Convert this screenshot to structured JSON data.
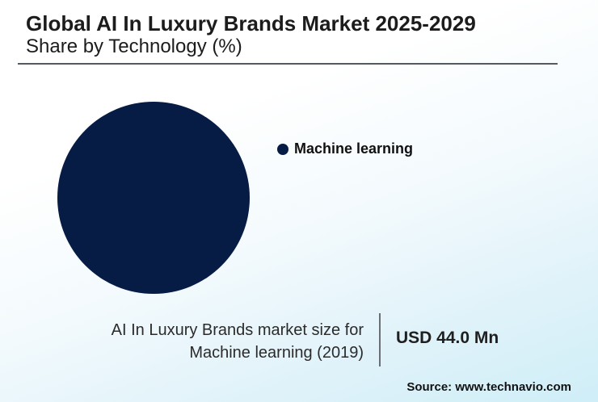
{
  "header": {
    "title": "Global AI In Luxury Brands Market 2025-2029",
    "subtitle": "Share by Technology (%)"
  },
  "chart_data": {
    "type": "pie",
    "categories": [
      "Machine learning"
    ],
    "values": [
      100
    ],
    "colors": [
      "#071c45"
    ],
    "legend_position": "right"
  },
  "legend": {
    "items": [
      {
        "label": "Machine learning",
        "color": "#071c45"
      }
    ]
  },
  "footer": {
    "caption_line1": "AI In Luxury Brands market size for",
    "caption_line2": "Machine learning (2019)",
    "market_value": "USD 44.0 Mn",
    "source": "Source: www.technavio.com"
  }
}
